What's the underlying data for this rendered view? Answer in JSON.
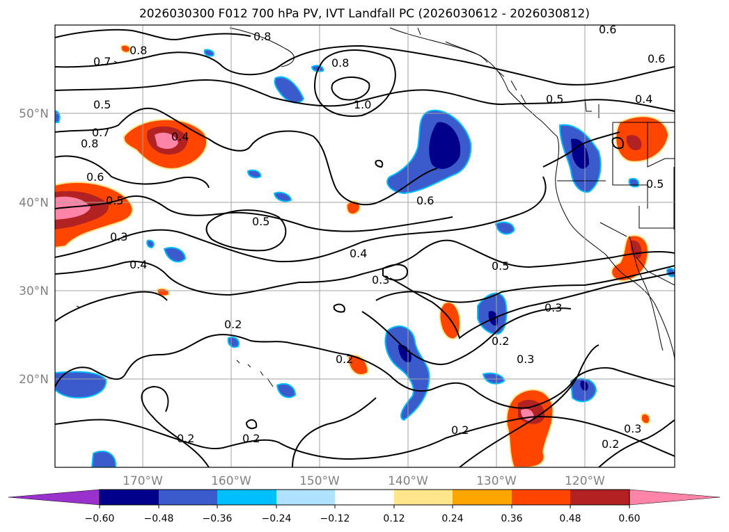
{
  "title": "2026030300 F012 700 hPa PV, IVT Landfall PC (2026030612 - 2026030812)",
  "map": {
    "lat_labels": [
      "50°N",
      "40°N",
      "30°N",
      "20°N"
    ],
    "lon_labels": [
      "170°W",
      "160°W",
      "150°W",
      "140°W",
      "130°W",
      "120°W"
    ],
    "contour_labels": [
      "0.7",
      "0.8",
      "0.8",
      "0.6",
      "0.8",
      "1.0",
      "0.6",
      "0.5",
      "0.4",
      "0.5",
      "0.7",
      "0.8",
      "0.6",
      "0.5",
      "0.4",
      "0.3",
      "0.4",
      "0.5",
      "0.6",
      "0.4",
      "0.3",
      "0.5",
      "0.3",
      "0.2",
      "0.2",
      "0.3",
      "0.2",
      "0.2",
      "0.2",
      "0.2",
      "0.2",
      "0.3",
      "0.5"
    ]
  },
  "colorbar": {
    "tick_labels": [
      "−0.60",
      "−0.48",
      "−0.36",
      "−0.24",
      "−0.12",
      "0.12",
      "0.24",
      "0.36",
      "0.48",
      "0.60"
    ],
    "colors": [
      "#9932cc",
      "#00008b",
      "#3b5bcc",
      "#00bfff",
      "#b0e2ff",
      "#ffffff",
      "#ffe68c",
      "#ffa500",
      "#ff4500",
      "#b22222",
      "#ff85a8"
    ]
  }
}
